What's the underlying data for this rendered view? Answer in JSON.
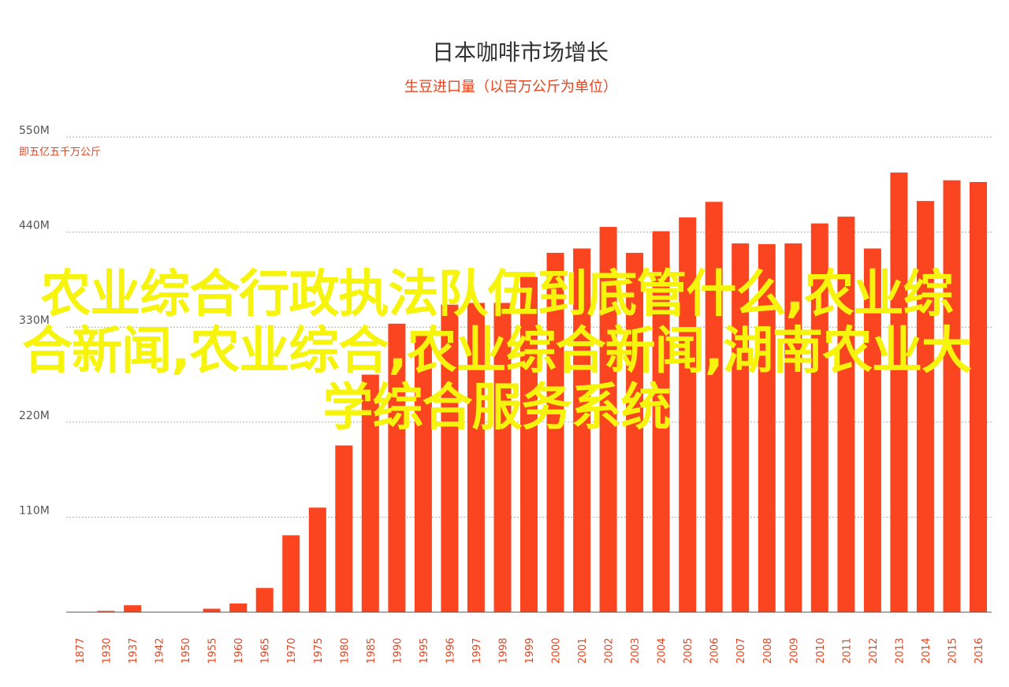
{
  "watermark": "农业综合行政执法队伍到底管什么,农业综合新闻,农业综合,农业综合新闻,湖南农业大学综合服务系统",
  "colors": {
    "bar": "#fa4520",
    "grid": "#aaaaaa",
    "axis": "#555555",
    "accent": "#e8431f",
    "overlay": "#f6f40c"
  },
  "chart_data": {
    "type": "bar",
    "title": "日本咖啡市场增长",
    "subtitle": "生豆进口量（以百万公斤为单位）",
    "ylabel_note": "即五亿五千万公斤",
    "ylim": [
      0,
      550
    ],
    "yticks": [
      {
        "value": 110,
        "label": "110M"
      },
      {
        "value": 220,
        "label": "220M"
      },
      {
        "value": 330,
        "label": "330M"
      },
      {
        "value": 440,
        "label": "440M"
      },
      {
        "value": 550,
        "label": "550M"
      }
    ],
    "grid": true,
    "categories": [
      "1877",
      "1930",
      "1937",
      "1942",
      "1950",
      "1955",
      "1960",
      "1965",
      "1970",
      "1975",
      "1980",
      "1985",
      "1990",
      "1995",
      "1996",
      "1997",
      "1998",
      "1999",
      "2000",
      "2001",
      "2002",
      "2003",
      "2004",
      "2005",
      "2006",
      "2007",
      "2008",
      "2009",
      "2010",
      "2011",
      "2012",
      "2013",
      "2014",
      "2015",
      "2016"
    ],
    "values": [
      0,
      1.5,
      8,
      0,
      0,
      4,
      10,
      28,
      89,
      121,
      193,
      275,
      334,
      320,
      356,
      358,
      358,
      388,
      416,
      421,
      446,
      416,
      441,
      457,
      475,
      427,
      426,
      427,
      450,
      458,
      421,
      509,
      476,
      500,
      498
    ]
  }
}
